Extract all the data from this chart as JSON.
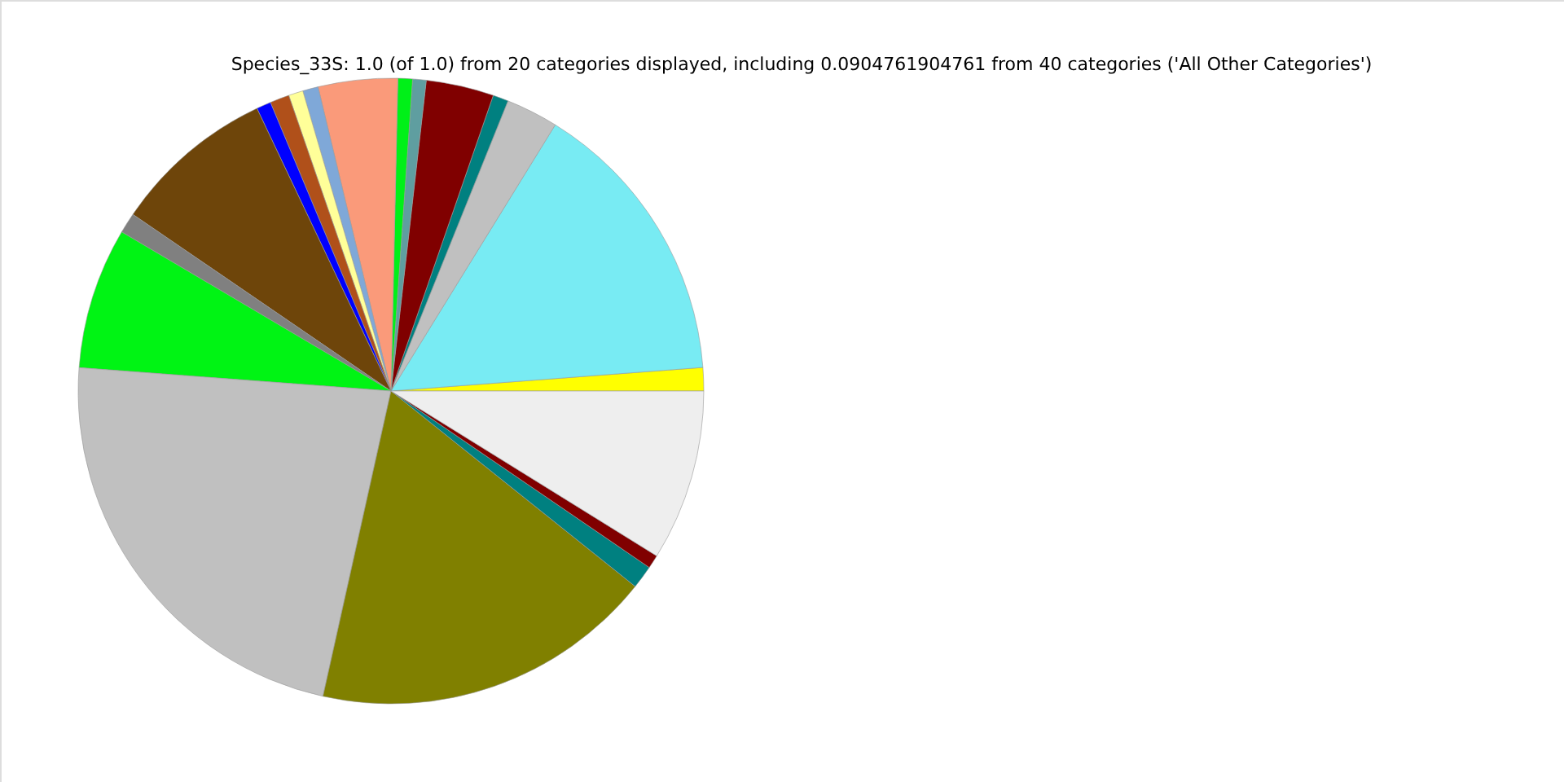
{
  "chart_data": {
    "type": "pie",
    "title": "Species_33S: 1.0 (of 1.0) from 20 categories displayed, including 0.0904761904761 from 40 categories ('All Other Categories')",
    "categories": [
      null,
      null,
      null,
      null,
      null,
      null,
      null,
      null,
      null,
      null,
      null,
      null,
      null,
      null,
      null,
      null,
      null,
      null,
      null,
      null
    ],
    "values": [
      1.2,
      15,
      2.7,
      0.8,
      3.5,
      0.7,
      0.75,
      4.1,
      0.8,
      0.75,
      1,
      0.75,
      8.4,
      1.06,
      7.3,
      22.7,
      17.75,
      1.2,
      0.7,
      8.84
    ],
    "colors": [
      "#ffff00",
      "#78ebf3",
      "#c0c0c0",
      "#008080",
      "#800000",
      "#5f9ea0",
      "#00f018",
      "#fa9a7a",
      "#7fa8d8",
      "#ffff99",
      "#b0501a",
      "#0000ff",
      "#6e450a",
      "#808080",
      "#00f414",
      "#c0c0c0",
      "#808000",
      "#008080",
      "#800000",
      "#eeeeee"
    ]
  }
}
